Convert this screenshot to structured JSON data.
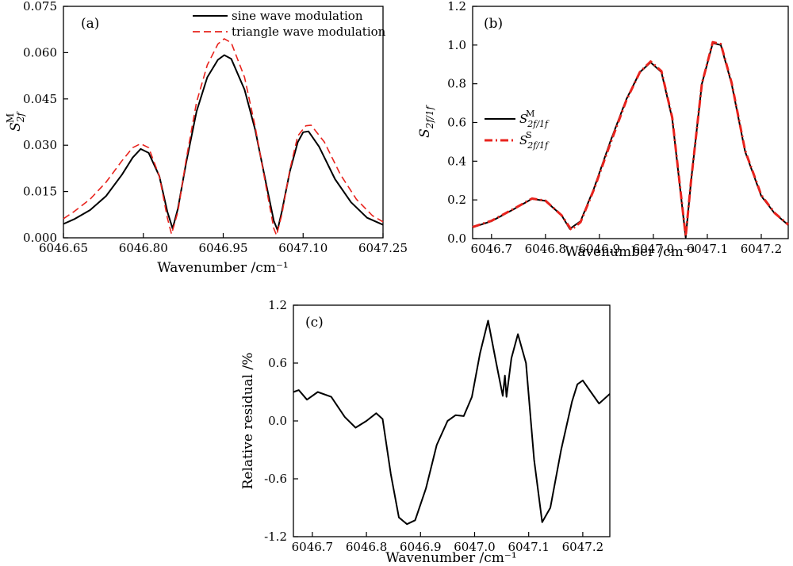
{
  "chart_data": [
    {
      "id": "a",
      "type": "line",
      "panel_label": "(a)",
      "xlabel": "Wavenumber /cm⁻¹",
      "ylabel": "S",
      "ylabel_sub": "2f",
      "ylabel_sup": "M",
      "xlim": [
        6046.65,
        6047.25
      ],
      "ylim": [
        0.0,
        0.075
      ],
      "xticks": [
        "6046.65",
        "6046.80",
        "6046.95",
        "6047.10",
        "6047.25"
      ],
      "yticks": [
        "0.000",
        "0.015",
        "0.030",
        "0.045",
        "0.060",
        "0.075"
      ],
      "legend_position": "top-right",
      "series": [
        {
          "name": "sine wave modulation",
          "color": "#000000",
          "style": "solid",
          "points": [
            [
              6046.65,
              0.0045
            ],
            [
              6046.67,
              0.006
            ],
            [
              6046.7,
              0.009
            ],
            [
              6046.73,
              0.0135
            ],
            [
              6046.76,
              0.0205
            ],
            [
              6046.78,
              0.026
            ],
            [
              6046.795,
              0.0288
            ],
            [
              6046.81,
              0.0275
            ],
            [
              6046.83,
              0.02
            ],
            [
              6046.845,
              0.0085
            ],
            [
              6046.855,
              0.003
            ],
            [
              6046.865,
              0.0095
            ],
            [
              6046.88,
              0.024
            ],
            [
              6046.9,
              0.041
            ],
            [
              6046.92,
              0.052
            ],
            [
              6046.94,
              0.0577
            ],
            [
              6046.952,
              0.0592
            ],
            [
              6046.965,
              0.058
            ],
            [
              6046.99,
              0.048
            ],
            [
              6047.01,
              0.035
            ],
            [
              6047.03,
              0.018
            ],
            [
              6047.045,
              0.0055
            ],
            [
              6047.052,
              0.0025
            ],
            [
              6047.06,
              0.0085
            ],
            [
              6047.075,
              0.0215
            ],
            [
              6047.09,
              0.031
            ],
            [
              6047.1,
              0.0342
            ],
            [
              6047.11,
              0.0345
            ],
            [
              6047.13,
              0.0295
            ],
            [
              6047.16,
              0.019
            ],
            [
              6047.19,
              0.0115
            ],
            [
              6047.22,
              0.0065
            ],
            [
              6047.25,
              0.0042
            ]
          ]
        },
        {
          "name": "triangle wave modulation",
          "color": "#e8231d",
          "style": "dashed",
          "points": [
            [
              6046.65,
              0.0062
            ],
            [
              6046.67,
              0.0085
            ],
            [
              6046.7,
              0.0125
            ],
            [
              6046.73,
              0.018
            ],
            [
              6046.76,
              0.025
            ],
            [
              6046.78,
              0.0292
            ],
            [
              6046.795,
              0.0305
            ],
            [
              6046.81,
              0.0292
            ],
            [
              6046.83,
              0.02
            ],
            [
              6046.845,
              0.0065
            ],
            [
              6046.853,
              0.0012
            ],
            [
              6046.865,
              0.0085
            ],
            [
              6046.88,
              0.025
            ],
            [
              6046.9,
              0.044
            ],
            [
              6046.92,
              0.056
            ],
            [
              6046.94,
              0.0628
            ],
            [
              6046.952,
              0.0645
            ],
            [
              6046.965,
              0.0632
            ],
            [
              6046.99,
              0.052
            ],
            [
              6047.01,
              0.036
            ],
            [
              6047.03,
              0.017
            ],
            [
              6047.045,
              0.003
            ],
            [
              6047.05,
              0.0008
            ],
            [
              6047.06,
              0.0075
            ],
            [
              6047.075,
              0.022
            ],
            [
              6047.09,
              0.033
            ],
            [
              6047.105,
              0.0363
            ],
            [
              6047.115,
              0.0365
            ],
            [
              6047.14,
              0.031
            ],
            [
              6047.17,
              0.0205
            ],
            [
              6047.2,
              0.0125
            ],
            [
              6047.23,
              0.0072
            ],
            [
              6047.25,
              0.0052
            ]
          ]
        }
      ]
    },
    {
      "id": "b",
      "type": "line",
      "panel_label": "(b)",
      "xlabel": "Wavenumber /cm⁻¹",
      "ylabel": "S",
      "ylabel_sub": "2f/1f",
      "xlim": [
        6046.665,
        6047.25
      ],
      "ylim": [
        0.0,
        1.2
      ],
      "xticks": [
        "6046.7",
        "6046.8",
        "6046.9",
        "6047.0",
        "6047.1",
        "6047.2"
      ],
      "yticks": [
        "0.0",
        "0.2",
        "0.4",
        "0.6",
        "0.8",
        "1.0",
        "1.2"
      ],
      "legend_position": "center-left",
      "series": [
        {
          "name": "S",
          "name_sub": "2f/1f",
          "name_sup": "M",
          "color": "#000000",
          "style": "solid",
          "points": [
            [
              6046.665,
              0.058
            ],
            [
              6046.7,
              0.09
            ],
            [
              6046.74,
              0.15
            ],
            [
              6046.775,
              0.205
            ],
            [
              6046.8,
              0.195
            ],
            [
              6046.83,
              0.12
            ],
            [
              6046.845,
              0.05
            ],
            [
              6046.865,
              0.09
            ],
            [
              6046.89,
              0.26
            ],
            [
              6046.92,
              0.5
            ],
            [
              6046.95,
              0.72
            ],
            [
              6046.975,
              0.86
            ],
            [
              6046.995,
              0.91
            ],
            [
              6047.015,
              0.86
            ],
            [
              6047.035,
              0.62
            ],
            [
              6047.05,
              0.25
            ],
            [
              6047.06,
              0.005
            ],
            [
              6047.07,
              0.3
            ],
            [
              6047.09,
              0.8
            ],
            [
              6047.11,
              1.01
            ],
            [
              6047.125,
              1.0
            ],
            [
              6047.145,
              0.8
            ],
            [
              6047.17,
              0.45
            ],
            [
              6047.2,
              0.22
            ],
            [
              6047.225,
              0.13
            ],
            [
              6047.25,
              0.07
            ]
          ]
        },
        {
          "name": "S",
          "name_sub": "2f/1f",
          "name_sup": "S",
          "color": "#e8231d",
          "style": "dashdot",
          "points": [
            [
              6046.665,
              0.06
            ],
            [
              6046.7,
              0.092
            ],
            [
              6046.74,
              0.152
            ],
            [
              6046.775,
              0.207
            ],
            [
              6046.8,
              0.196
            ],
            [
              6046.83,
              0.12
            ],
            [
              6046.848,
              0.045
            ],
            [
              6046.865,
              0.085
            ],
            [
              6046.89,
              0.255
            ],
            [
              6046.92,
              0.49
            ],
            [
              6046.95,
              0.715
            ],
            [
              6046.975,
              0.86
            ],
            [
              6046.995,
              0.915
            ],
            [
              6047.015,
              0.865
            ],
            [
              6047.035,
              0.625
            ],
            [
              6047.05,
              0.255
            ],
            [
              6047.06,
              0.012
            ],
            [
              6047.07,
              0.3
            ],
            [
              6047.09,
              0.8
            ],
            [
              6047.11,
              1.015
            ],
            [
              6047.125,
              1.005
            ],
            [
              6047.145,
              0.805
            ],
            [
              6047.17,
              0.455
            ],
            [
              6047.2,
              0.225
            ],
            [
              6047.225,
              0.132
            ],
            [
              6047.25,
              0.072
            ]
          ]
        }
      ]
    },
    {
      "id": "c",
      "type": "line",
      "panel_label": "(c)",
      "xlabel": "Wavenumber /cm⁻¹",
      "ylabel": "Relative residual /%",
      "xlim": [
        6046.665,
        6047.25
      ],
      "ylim": [
        -1.2,
        1.2
      ],
      "xticks": [
        "6046.7",
        "6046.8",
        "6046.9",
        "6047.0",
        "6047.1",
        "6047.2"
      ],
      "yticks": [
        "-1.2",
        "-0.6",
        "0.0",
        "0.6",
        "1.2"
      ],
      "series": [
        {
          "name": "",
          "color": "#000000",
          "style": "solid",
          "points": [
            [
              6046.665,
              0.3
            ],
            [
              6046.675,
              0.32
            ],
            [
              6046.69,
              0.22
            ],
            [
              6046.71,
              0.3
            ],
            [
              6046.735,
              0.25
            ],
            [
              6046.76,
              0.04
            ],
            [
              6046.78,
              -0.07
            ],
            [
              6046.8,
              0.0
            ],
            [
              6046.818,
              0.08
            ],
            [
              6046.83,
              0.02
            ],
            [
              6046.845,
              -0.55
            ],
            [
              6046.86,
              -1.0
            ],
            [
              6046.875,
              -1.07
            ],
            [
              6046.89,
              -1.03
            ],
            [
              6046.91,
              -0.7
            ],
            [
              6046.93,
              -0.25
            ],
            [
              6046.95,
              0.0
            ],
            [
              6046.965,
              0.06
            ],
            [
              6046.98,
              0.05
            ],
            [
              6046.995,
              0.25
            ],
            [
              6047.01,
              0.7
            ],
            [
              6047.025,
              1.04
            ],
            [
              6047.04,
              0.6
            ],
            [
              6047.052,
              0.26
            ],
            [
              6047.056,
              0.47
            ],
            [
              6047.059,
              0.25
            ],
            [
              6047.068,
              0.65
            ],
            [
              6047.08,
              0.9
            ],
            [
              6047.095,
              0.6
            ],
            [
              6047.11,
              -0.4
            ],
            [
              6047.125,
              -1.05
            ],
            [
              6047.14,
              -0.9
            ],
            [
              6047.16,
              -0.3
            ],
            [
              6047.18,
              0.2
            ],
            [
              6047.19,
              0.38
            ],
            [
              6047.2,
              0.42
            ],
            [
              6047.215,
              0.3
            ],
            [
              6047.23,
              0.18
            ],
            [
              6047.25,
              0.28
            ]
          ]
        }
      ]
    }
  ]
}
